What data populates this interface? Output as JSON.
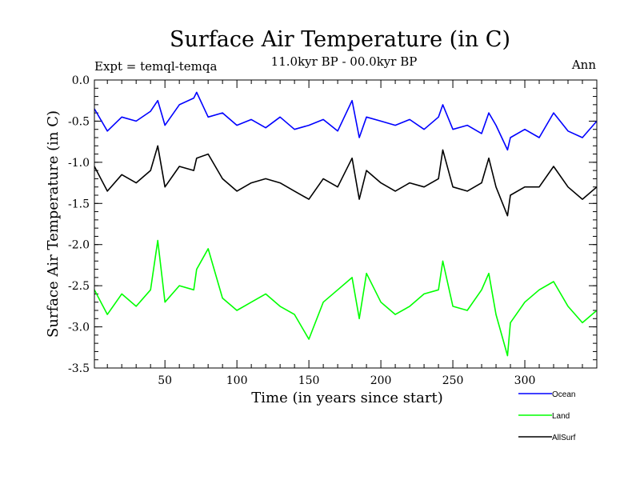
{
  "chart_data": {
    "type": "line",
    "title": "Surface Air Temperature (in C)",
    "subtitle_left": "Expt = temql-temqa",
    "subtitle_center": "11.0kyr BP - 00.0kyr BP",
    "subtitle_right": "Ann",
    "xlabel": "Time (in years since start)",
    "ylabel": "Surface Air Temperature (in C)",
    "xlim": [
      1,
      350
    ],
    "ylim": [
      -3.5,
      0.0
    ],
    "x_ticks": [
      50,
      100,
      150,
      200,
      250,
      300
    ],
    "y_ticks": [
      0.0,
      -0.5,
      -1.0,
      -1.5,
      -2.0,
      -2.5,
      -3.0,
      -3.5
    ],
    "y_tick_labels": [
      "0.0",
      "-0.5",
      "-1.0",
      "-1.5",
      "-2.0",
      "-2.5",
      "-3.0",
      "-3.5"
    ],
    "legend_position": "bottom-right, outside plot",
    "x": [
      1,
      10,
      20,
      30,
      40,
      45,
      50,
      60,
      70,
      72,
      80,
      90,
      100,
      110,
      120,
      130,
      140,
      150,
      160,
      170,
      180,
      185,
      190,
      200,
      210,
      220,
      230,
      240,
      243,
      250,
      260,
      270,
      275,
      280,
      288,
      290,
      300,
      310,
      320,
      330,
      340,
      350
    ],
    "series": [
      {
        "name": "Ocean",
        "color": "#0000ff",
        "values": [
          -0.35,
          -0.62,
          -0.45,
          -0.5,
          -0.38,
          -0.25,
          -0.55,
          -0.3,
          -0.22,
          -0.15,
          -0.45,
          -0.4,
          -0.55,
          -0.48,
          -0.58,
          -0.45,
          -0.6,
          -0.55,
          -0.48,
          -0.62,
          -0.25,
          -0.7,
          -0.45,
          -0.5,
          -0.55,
          -0.48,
          -0.6,
          -0.45,
          -0.3,
          -0.6,
          -0.55,
          -0.65,
          -0.4,
          -0.55,
          -0.85,
          -0.7,
          -0.6,
          -0.7,
          -0.4,
          -0.62,
          -0.7,
          -0.5
        ]
      },
      {
        "name": "Land",
        "color": "#00ff00",
        "values": [
          -2.55,
          -2.85,
          -2.6,
          -2.75,
          -2.55,
          -1.95,
          -2.7,
          -2.5,
          -2.55,
          -2.3,
          -2.05,
          -2.65,
          -2.8,
          -2.7,
          -2.6,
          -2.75,
          -2.85,
          -3.15,
          -2.7,
          -2.55,
          -2.4,
          -2.9,
          -2.35,
          -2.7,
          -2.85,
          -2.75,
          -2.6,
          -2.55,
          -2.2,
          -2.75,
          -2.8,
          -2.55,
          -2.35,
          -2.85,
          -3.35,
          -2.95,
          -2.7,
          -2.55,
          -2.45,
          -2.75,
          -2.95,
          -2.8
        ]
      },
      {
        "name": "AllSurf",
        "color": "#000000",
        "values": [
          -1.05,
          -1.35,
          -1.15,
          -1.25,
          -1.1,
          -0.8,
          -1.3,
          -1.05,
          -1.1,
          -0.95,
          -0.9,
          -1.2,
          -1.35,
          -1.25,
          -1.2,
          -1.25,
          -1.35,
          -1.45,
          -1.2,
          -1.3,
          -0.95,
          -1.45,
          -1.1,
          -1.25,
          -1.35,
          -1.25,
          -1.3,
          -1.2,
          -0.85,
          -1.3,
          -1.35,
          -1.25,
          -0.95,
          -1.3,
          -1.65,
          -1.4,
          -1.3,
          -1.3,
          -1.05,
          -1.3,
          -1.45,
          -1.3
        ]
      }
    ]
  }
}
